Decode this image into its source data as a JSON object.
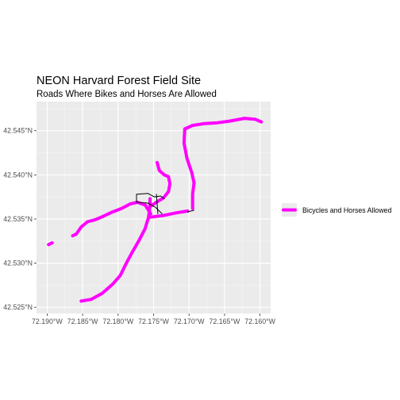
{
  "chart_data": {
    "type": "map",
    "title": "NEON Harvard Forest Field Site",
    "subtitle": "Roads Where Bikes and Horses Are Allowed",
    "xlim": [
      -72.1915,
      -72.1585
    ],
    "ylim": [
      42.5243,
      42.5483
    ],
    "x_ticks": [
      {
        "value": -72.19,
        "label": "72.190°W"
      },
      {
        "value": -72.185,
        "label": "72.185°W"
      },
      {
        "value": -72.18,
        "label": "72.180°W"
      },
      {
        "value": -72.175,
        "label": "72.175°W"
      },
      {
        "value": -72.17,
        "label": "72.170°W"
      },
      {
        "value": -72.165,
        "label": "72.165°W"
      },
      {
        "value": -72.16,
        "label": "72.160°W"
      }
    ],
    "y_ticks": [
      {
        "value": 42.525,
        "label": "42.525°N"
      },
      {
        "value": 42.53,
        "label": "42.530°N"
      },
      {
        "value": 42.535,
        "label": "42.535°N"
      },
      {
        "value": 42.54,
        "label": "42.540°N"
      },
      {
        "value": 42.545,
        "label": "42.545°N"
      }
    ],
    "grid": true,
    "legend": {
      "position": "right",
      "entries": [
        {
          "label": "Bicycles and Horses Allowed",
          "color": "#ff00ff"
        }
      ]
    },
    "series": [
      {
        "name": "Bicycles and Horses Allowed",
        "color": "#ff00ff",
        "style": "thick",
        "paths": [
          [
            [
              -72.1898,
              42.5321
            ],
            [
              -72.1893,
              42.5323
            ]
          ],
          [
            [
              -72.1864,
              42.5331
            ],
            [
              -72.1859,
              42.5333
            ],
            [
              -72.1852,
              42.5341
            ],
            [
              -72.1843,
              42.5347
            ],
            [
              -72.1833,
              42.5349
            ],
            [
              -72.1821,
              42.5353
            ],
            [
              -72.1808,
              42.5358
            ],
            [
              -72.1795,
              42.5362
            ],
            [
              -72.1783,
              42.5367
            ],
            [
              -72.1773,
              42.5369
            ],
            [
              -72.1762,
              42.5366
            ],
            [
              -72.1754,
              42.5356
            ]
          ],
          [
            [
              -72.1852,
              42.5257
            ],
            [
              -72.1838,
              42.5259
            ],
            [
              -72.1822,
              42.5266
            ],
            [
              -72.1808,
              42.5276
            ],
            [
              -72.1797,
              42.5286
            ],
            [
              -72.1789,
              42.5299
            ],
            [
              -72.1781,
              42.5311
            ],
            [
              -72.1771,
              42.5325
            ],
            [
              -72.1762,
              42.5339
            ],
            [
              -72.1757,
              42.5352
            ],
            [
              -72.1755,
              42.5365
            ],
            [
              -72.1755,
              42.5373
            ]
          ],
          [
            [
              -72.1755,
              42.5352
            ],
            [
              -72.1736,
              42.5354
            ],
            [
              -72.1718,
              42.5357
            ],
            [
              -72.1702,
              42.5359
            ]
          ],
          [
            [
              -72.1745,
              42.5414
            ],
            [
              -72.1742,
              42.5405
            ],
            [
              -72.1735,
              42.54
            ],
            [
              -72.1729,
              42.5398
            ],
            [
              -72.1727,
              42.539
            ],
            [
              -72.1729,
              42.5381
            ],
            [
              -72.1736,
              42.5374
            ],
            [
              -72.1746,
              42.5369
            ],
            [
              -72.1755,
              42.5364
            ]
          ],
          [
            [
              -72.1695,
              42.5362
            ],
            [
              -72.1695,
              42.5378
            ],
            [
              -72.1693,
              42.5391
            ],
            [
              -72.1696,
              42.5402
            ],
            [
              -72.1703,
              42.5419
            ],
            [
              -72.1707,
              42.5436
            ],
            [
              -72.1706,
              42.5452
            ],
            [
              -72.1695,
              42.5456
            ],
            [
              -72.1679,
              42.5458
            ],
            [
              -72.166,
              42.5459
            ],
            [
              -72.1642,
              42.5461
            ],
            [
              -72.1622,
              42.5464
            ],
            [
              -72.1607,
              42.5463
            ],
            [
              -72.1598,
              42.546
            ]
          ]
        ]
      },
      {
        "name": "",
        "color": "#000000",
        "style": "thin",
        "paths": [
          [
            [
              -72.1738,
              42.5356
            ],
            [
              -72.1747,
              42.5363
            ],
            [
              -72.1758,
              42.5368
            ]
          ],
          [
            [
              -72.1758,
              42.5368
            ],
            [
              -72.1774,
              42.5369
            ],
            [
              -72.1774,
              42.5378
            ],
            [
              -72.1758,
              42.5379
            ]
          ],
          [
            [
              -72.1758,
              42.5379
            ],
            [
              -72.1749,
              42.5375
            ],
            [
              -72.174,
              42.5376
            ],
            [
              -72.1735,
              42.5373
            ]
          ],
          [
            [
              -72.1746,
              42.5378
            ],
            [
              -72.1744,
              42.5356
            ]
          ],
          [
            [
              -72.1702,
              42.5358
            ],
            [
              -72.1693,
              42.536
            ]
          ]
        ]
      }
    ]
  }
}
